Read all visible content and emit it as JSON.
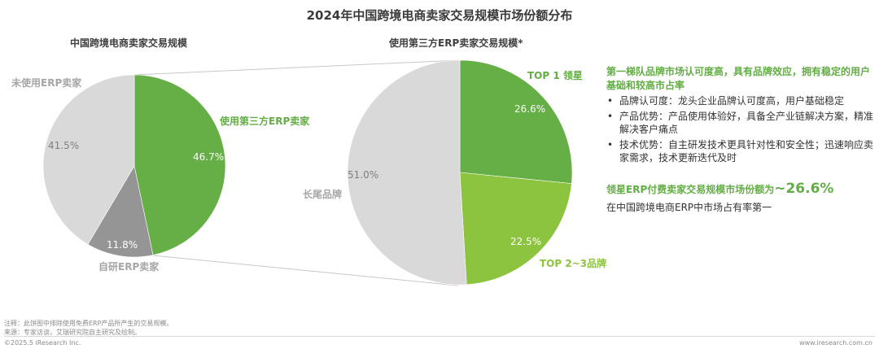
{
  "title": "2024年中国跨境电商卖家交易规模市场份额分布",
  "left_chart": {
    "subtitle": "中国跨境电商卖家交易规模",
    "slices": [
      {
        "label": "使用第三方ERP卖家",
        "value": 46.7,
        "pct_label": "46.7%",
        "color": "#66ae46"
      },
      {
        "label": "自研ERP卖家",
        "value": 11.8,
        "pct_label": "11.8%",
        "color": "#959595"
      },
      {
        "label": "未使用ERP卖家",
        "value": 41.5,
        "pct_label": "41.5%",
        "color": "#d9d9d9"
      }
    ]
  },
  "right_chart": {
    "subtitle": "使用第三方ERP卖家交易规模*",
    "slices": [
      {
        "label": "TOP 1 领星",
        "value": 26.6,
        "pct_label": "26.6%",
        "color": "#66ae46"
      },
      {
        "label": "TOP 2~3品牌",
        "value": 22.5,
        "pct_label": "22.5%",
        "color": "#8cc43f"
      },
      {
        "label": "长尾品牌",
        "value": 51.0,
        "pct_label": "51.0%",
        "color": "#d9d9d9"
      }
    ]
  },
  "side_panel": {
    "heading": "第一梯队品牌市场认可度高，具有品牌效应，拥有稳定的用户基础和较高市占率",
    "bullets": [
      "品牌认可度：龙头企业品牌认可度高，用户基础稳定",
      "产品优势：产品使用体验好，具备全产业链解决方案，精准解决客户痛点",
      "技术优势：自主研发技术更具针对性和安全性；迅速响应卖家需求，技术更新迭代及时"
    ],
    "highlight_text": "领星ERP付费卖家交易规模市场份额为",
    "highlight_value": "~26.6%",
    "highlight_sub": "在中国跨境电商ERP中市场占有率第一"
  },
  "footer": {
    "note": "注释：此饼图中排除使用免费ERP产品所产生的交易规模。",
    "source": "来源：专家访谈，艾瑞研究院自主研究及绘制。",
    "copyright": "©2025.5 iResearch Inc.",
    "website": "www.iresearch.com.cn"
  },
  "chart_data": [
    {
      "type": "pie",
      "title": "中国跨境电商卖家交易规模",
      "categories": [
        "使用第三方ERP卖家",
        "自研ERP卖家",
        "未使用ERP卖家"
      ],
      "values": [
        46.7,
        11.8,
        41.5
      ],
      "unit": "%",
      "colors": [
        "#66ae46",
        "#959595",
        "#d9d9d9"
      ]
    },
    {
      "type": "pie",
      "title": "使用第三方ERP卖家交易规模*",
      "categories": [
        "TOP 1 领星",
        "TOP 2~3品牌",
        "长尾品牌"
      ],
      "values": [
        26.6,
        22.5,
        51.0
      ],
      "unit": "%",
      "colors": [
        "#66ae46",
        "#8cc43f",
        "#d9d9d9"
      ]
    }
  ]
}
